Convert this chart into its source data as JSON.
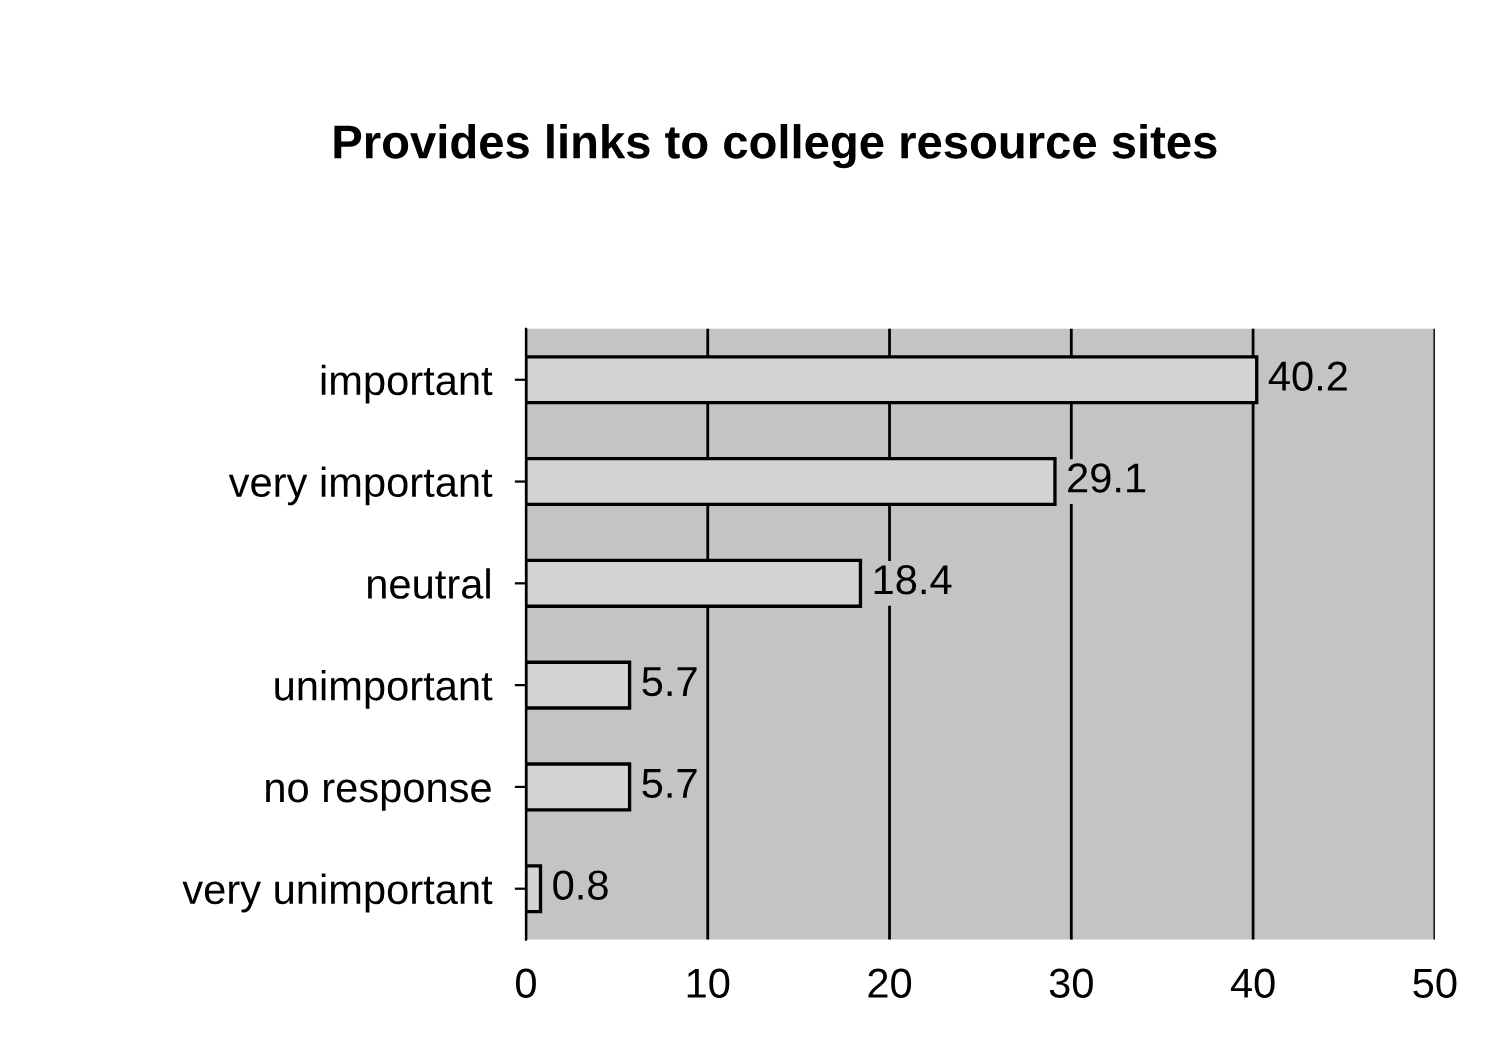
{
  "chart_data": {
    "type": "bar",
    "orientation": "horizontal",
    "title": "Provides links to college resource sites",
    "categories": [
      "important",
      "very important",
      "neutral",
      "unimportant",
      "no response",
      "very unimportant"
    ],
    "values": [
      40.2,
      29.1,
      18.4,
      5.7,
      5.7,
      0.8
    ],
    "color": "#d4d4d4",
    "data_labels": true,
    "grid": "x",
    "xlim": [
      0,
      50
    ],
    "xticks": [
      0,
      10,
      20,
      30,
      40,
      50
    ]
  }
}
